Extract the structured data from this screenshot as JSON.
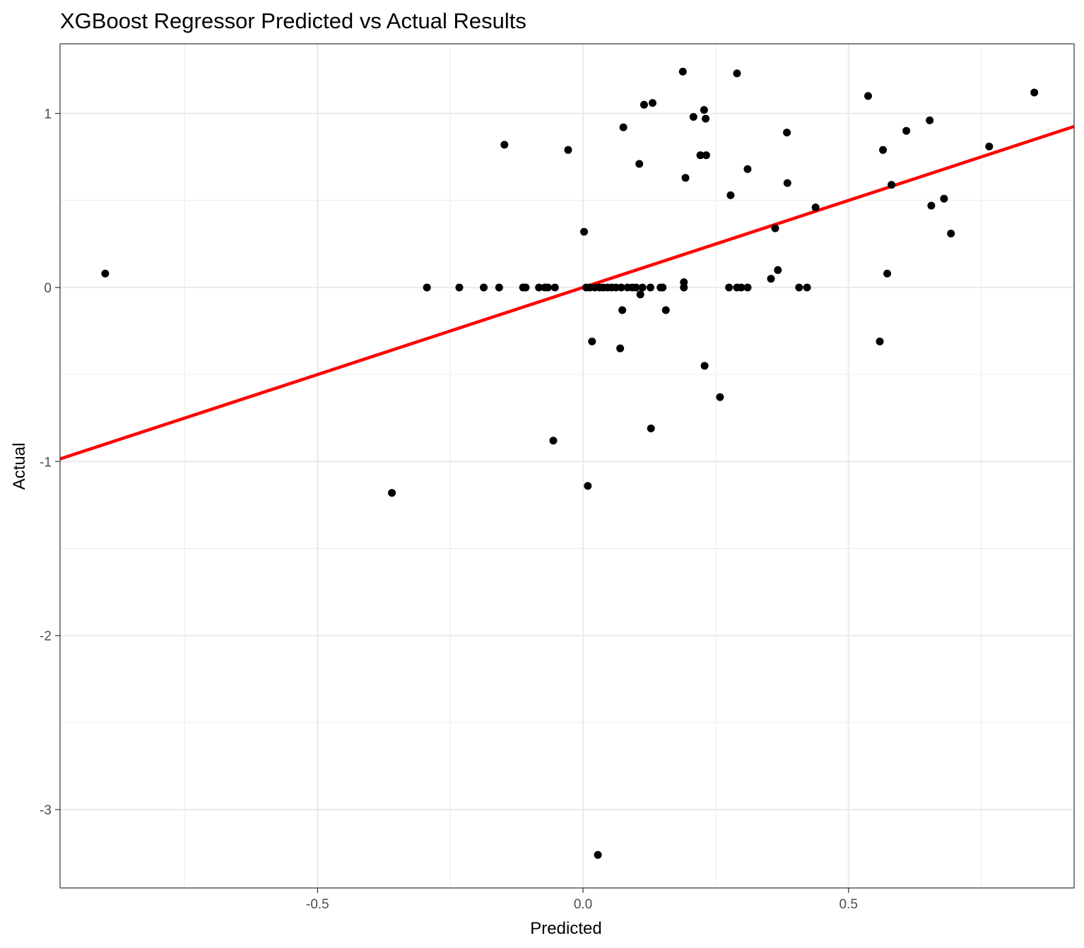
{
  "chart_data": {
    "type": "scatter",
    "title": "XGBoost Regressor Predicted vs Actual Results",
    "xlabel": "Predicted",
    "ylabel": "Actual",
    "xlim": [
      -0.985,
      0.925
    ],
    "ylim": [
      -3.45,
      1.4
    ],
    "x_ticks": [
      {
        "value": -0.5,
        "label": "-0.5"
      },
      {
        "value": 0.0,
        "label": "0.0"
      },
      {
        "value": 0.5,
        "label": "0.5"
      }
    ],
    "y_ticks": [
      {
        "value": 1,
        "label": "1"
      },
      {
        "value": 0,
        "label": "0"
      },
      {
        "value": -1,
        "label": "-1"
      },
      {
        "value": -2,
        "label": "-2"
      },
      {
        "value": -3,
        "label": "-3"
      }
    ],
    "x_minor": [
      -0.75,
      -0.25,
      0.25,
      0.75
    ],
    "y_minor": [
      0.5,
      -0.5,
      -1.5,
      -2.5
    ],
    "grid": true,
    "reference_line": {
      "slope": 1,
      "intercept": 0,
      "color": "#ff0000"
    },
    "point_color": "#000000",
    "points": [
      {
        "x": -0.9,
        "y": 0.08
      },
      {
        "x": -0.36,
        "y": -1.18
      },
      {
        "x": -0.294,
        "y": 0
      },
      {
        "x": -0.233,
        "y": 0
      },
      {
        "x": -0.187,
        "y": 0
      },
      {
        "x": -0.158,
        "y": 0
      },
      {
        "x": -0.148,
        "y": 0.82
      },
      {
        "x": -0.113,
        "y": 0
      },
      {
        "x": -0.108,
        "y": 0
      },
      {
        "x": -0.083,
        "y": 0
      },
      {
        "x": -0.072,
        "y": 0
      },
      {
        "x": -0.066,
        "y": 0
      },
      {
        "x": -0.056,
        "y": -0.88
      },
      {
        "x": -0.053,
        "y": 0
      },
      {
        "x": -0.028,
        "y": 0.79
      },
      {
        "x": 0.002,
        "y": 0.32
      },
      {
        "x": 0.006,
        "y": 0
      },
      {
        "x": 0.009,
        "y": -1.14
      },
      {
        "x": 0.013,
        "y": 0
      },
      {
        "x": 0.017,
        "y": -0.31
      },
      {
        "x": 0.022,
        "y": 0
      },
      {
        "x": 0.028,
        "y": -3.26
      },
      {
        "x": 0.031,
        "y": 0
      },
      {
        "x": 0.038,
        "y": 0
      },
      {
        "x": 0.046,
        "y": 0
      },
      {
        "x": 0.054,
        "y": 0
      },
      {
        "x": 0.062,
        "y": 0
      },
      {
        "x": 0.07,
        "y": -0.35
      },
      {
        "x": 0.072,
        "y": 0
      },
      {
        "x": 0.074,
        "y": -0.13
      },
      {
        "x": 0.076,
        "y": 0.92
      },
      {
        "x": 0.084,
        "y": 0
      },
      {
        "x": 0.093,
        "y": 0
      },
      {
        "x": 0.1,
        "y": 0
      },
      {
        "x": 0.106,
        "y": 0.71
      },
      {
        "x": 0.108,
        "y": -0.04
      },
      {
        "x": 0.112,
        "y": 0
      },
      {
        "x": 0.115,
        "y": 1.05
      },
      {
        "x": 0.127,
        "y": 0
      },
      {
        "x": 0.128,
        "y": -0.81
      },
      {
        "x": 0.131,
        "y": 1.06
      },
      {
        "x": 0.146,
        "y": 0
      },
      {
        "x": 0.15,
        "y": 0
      },
      {
        "x": 0.156,
        "y": -0.13
      },
      {
        "x": 0.188,
        "y": 1.24
      },
      {
        "x": 0.19,
        "y": 0
      },
      {
        "x": 0.19,
        "y": 0.03
      },
      {
        "x": 0.193,
        "y": 0.63
      },
      {
        "x": 0.208,
        "y": 0.98
      },
      {
        "x": 0.221,
        "y": 0.76
      },
      {
        "x": 0.228,
        "y": 1.02
      },
      {
        "x": 0.229,
        "y": -0.45
      },
      {
        "x": 0.231,
        "y": 0.97
      },
      {
        "x": 0.232,
        "y": 0.76
      },
      {
        "x": 0.258,
        "y": -0.63
      },
      {
        "x": 0.275,
        "y": 0
      },
      {
        "x": 0.278,
        "y": 0.53
      },
      {
        "x": 0.29,
        "y": 1.23
      },
      {
        "x": 0.29,
        "y": 0
      },
      {
        "x": 0.298,
        "y": 0
      },
      {
        "x": 0.31,
        "y": 0.68
      },
      {
        "x": 0.31,
        "y": 0
      },
      {
        "x": 0.354,
        "y": 0.05
      },
      {
        "x": 0.362,
        "y": 0.34
      },
      {
        "x": 0.367,
        "y": 0.1
      },
      {
        "x": 0.384,
        "y": 0.89
      },
      {
        "x": 0.385,
        "y": 0.6
      },
      {
        "x": 0.407,
        "y": 0
      },
      {
        "x": 0.422,
        "y": 0
      },
      {
        "x": 0.438,
        "y": 0.46
      },
      {
        "x": 0.537,
        "y": 1.1
      },
      {
        "x": 0.559,
        "y": -0.31
      },
      {
        "x": 0.565,
        "y": 0.79
      },
      {
        "x": 0.573,
        "y": 0.08
      },
      {
        "x": 0.581,
        "y": 0.59
      },
      {
        "x": 0.609,
        "y": 0.9
      },
      {
        "x": 0.653,
        "y": 0.96
      },
      {
        "x": 0.656,
        "y": 0.47
      },
      {
        "x": 0.68,
        "y": 0.51
      },
      {
        "x": 0.693,
        "y": 0.31
      },
      {
        "x": 0.765,
        "y": 0.81
      },
      {
        "x": 0.85,
        "y": 1.12
      }
    ]
  }
}
